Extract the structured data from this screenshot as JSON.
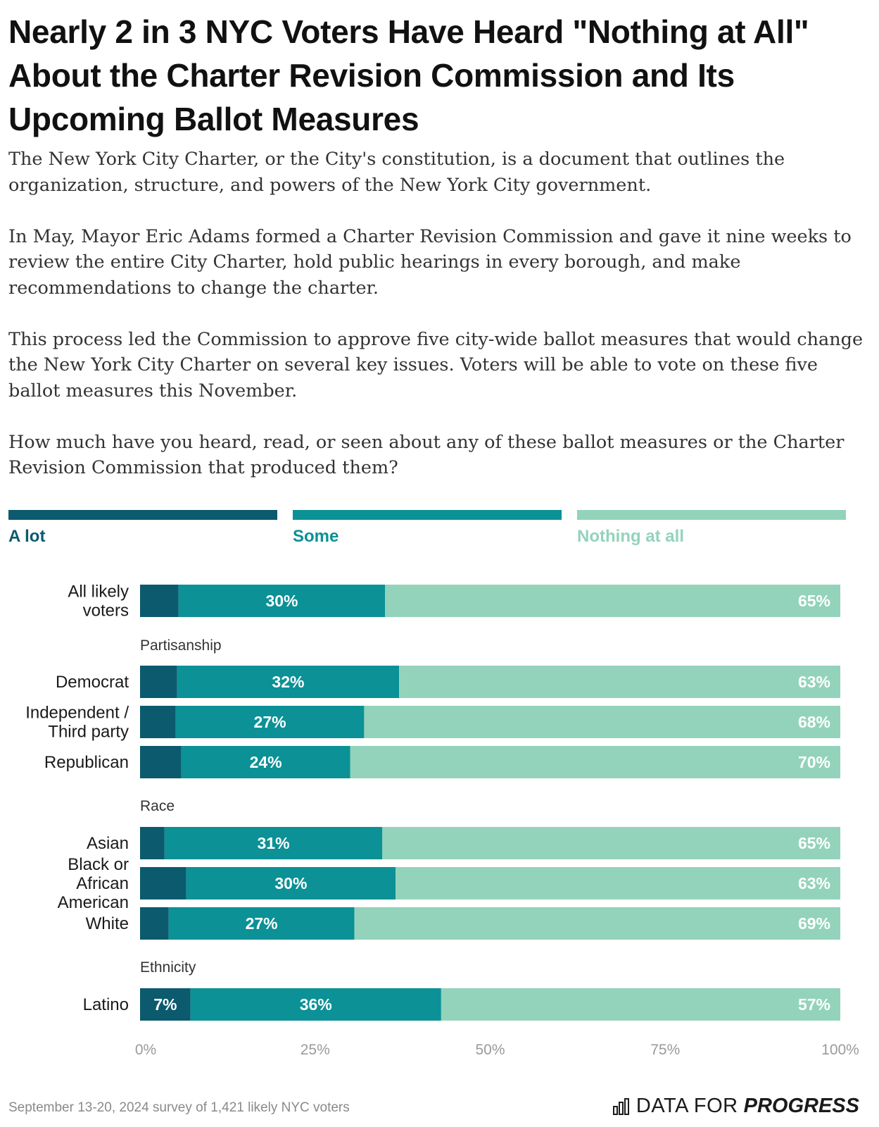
{
  "title": "Nearly 2 in 3 NYC Voters Have Heard \"Nothing at All\" About the Charter Revision Commission and Its Upcoming Ballot Measures",
  "paragraphs": [
    "The New York City Charter, or the City's constitution, is a document that outlines the organization, structure, and powers of the New York City government.",
    "In May, Mayor Eric Adams formed a Charter Revision Commission and gave it nine weeks to review the entire City Charter, hold public hearings in every borough, and make recommendations to change the charter.",
    "This process led the Commission to approve five city-wide ballot measures that would change the New York City Charter on several key issues. Voters will be able to vote on these five ballot measures this November.",
    "How much have you heard, read, or seen about any of these ballot measures or the Charter Revision Commission that produced them?"
  ],
  "legend": [
    {
      "label": "A lot",
      "color": "#0b5a6e"
    },
    {
      "label": "Some",
      "color": "#0b9196"
    },
    {
      "label": "Nothing at all",
      "color": "#93d3bb"
    }
  ],
  "chart_data": {
    "type": "bar",
    "orientation": "horizontal",
    "stacked": true,
    "xlim": [
      0,
      100
    ],
    "x_ticks": [
      "0%",
      "25%",
      "50%",
      "75%",
      "100%"
    ],
    "series_names": [
      "A lot",
      "Some",
      "Nothing at all"
    ],
    "rows": [
      {
        "group": "",
        "label": "All likely voters",
        "values": [
          5.5,
          29.5,
          65
        ],
        "labels": [
          "",
          "30%",
          "65%"
        ]
      },
      {
        "group": "Partisanship",
        "label": "Democrat",
        "values": [
          5.3,
          31.7,
          63
        ],
        "labels": [
          "",
          "32%",
          "63%"
        ]
      },
      {
        "group": "Partisanship",
        "label": "Independent / Third party",
        "values": [
          5.1,
          26.9,
          68
        ],
        "labels": [
          "",
          "27%",
          "68%"
        ]
      },
      {
        "group": "Partisanship",
        "label": "Republican",
        "values": [
          5.9,
          24.1,
          70
        ],
        "labels": [
          "",
          "24%",
          "70%"
        ]
      },
      {
        "group": "Race",
        "label": "Asian",
        "values": [
          3.5,
          31.1,
          65.4
        ],
        "labels": [
          "",
          "31%",
          "65%"
        ]
      },
      {
        "group": "Race",
        "label": "Black or African American",
        "values": [
          6.6,
          29.9,
          63.5
        ],
        "labels": [
          "",
          "30%",
          "63%"
        ]
      },
      {
        "group": "Race",
        "label": "White",
        "values": [
          4.1,
          26.5,
          69.4
        ],
        "labels": [
          "",
          "27%",
          "69%"
        ]
      },
      {
        "group": "Ethnicity",
        "label": "Latino",
        "values": [
          7.2,
          35.8,
          57
        ],
        "labels": [
          "7%",
          "36%",
          "57%"
        ]
      }
    ]
  },
  "footer": "September 13-20, 2024 survey of 1,421 likely NYC voters",
  "brand": {
    "part1": "DATA FOR",
    "part2": "PROGRESS"
  }
}
